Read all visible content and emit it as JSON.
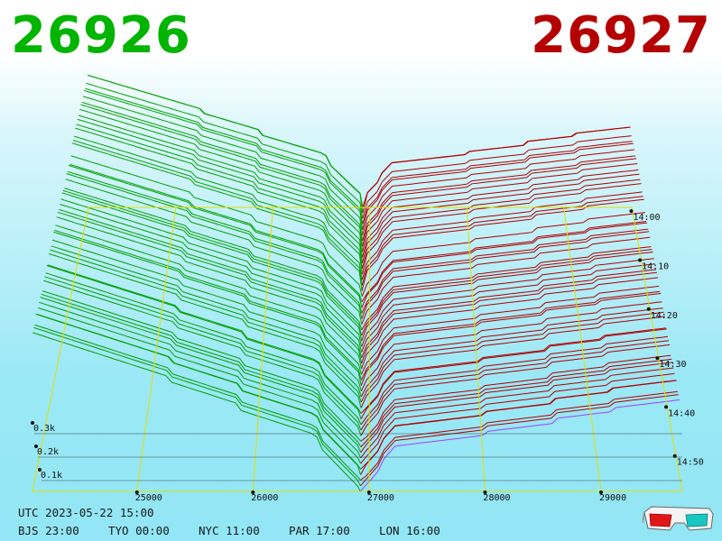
{
  "header": {
    "bid_price": "26926",
    "ask_price": "26927",
    "bid_color": "#00b400",
    "ask_color": "#b40000"
  },
  "footer": {
    "utc_line": "UTC 2023-05-22 15:00",
    "zones": [
      {
        "label": "BJS 23:00"
      },
      {
        "label": "TYO 00:00"
      },
      {
        "label": "NYC 11:00"
      },
      {
        "label": "PAR 17:00"
      },
      {
        "label": "LON 16:00"
      }
    ],
    "glasses_icon": "3d-glasses-icon"
  },
  "chart_data": {
    "type": "area",
    "view": "3d-order-book-depth-over-time",
    "price_ticks": [
      25000,
      26000,
      27000,
      28000,
      29000
    ],
    "price_tick_labels": [
      "25000",
      "26000",
      "27000",
      "28000",
      "29000"
    ],
    "time_ticks": [
      "14:00",
      "14:10",
      "14:20",
      "14:30",
      "14:40",
      "14:50"
    ],
    "depth_ticks": [
      100,
      200,
      300
    ],
    "depth_tick_labels": [
      "0.1k",
      "0.2k",
      "0.3k"
    ],
    "price_range": [
      24100,
      29700
    ],
    "time_range_minutes": [
      -62,
      0
    ],
    "depth_range": [
      0,
      700
    ],
    "mid_price": 26926.5,
    "snapshot_count": 52,
    "bid_color": "#00a000",
    "ask_color": "#b00000",
    "latest_snapshot_color": "#a040ff",
    "grid_color": "#e0e000"
  }
}
